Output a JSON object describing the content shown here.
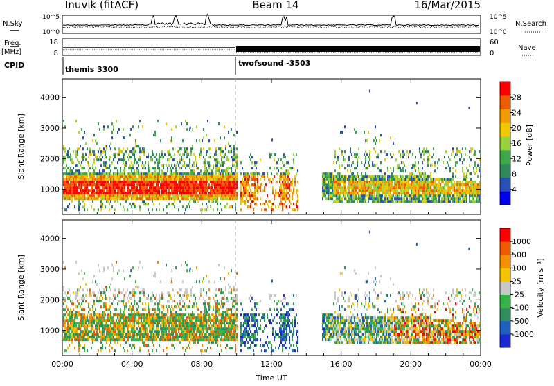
{
  "header": {
    "station": "Inuvik (fitACF)",
    "beam": "Beam 14",
    "date": "16/Mar/2015"
  },
  "strip": {
    "nsky_label": "N.Sky",
    "nsky_ticks": [
      "10^5",
      "10^0"
    ],
    "nsearch_label": "N.Search",
    "nsearch_ticks": [
      "10^5",
      "10^0"
    ],
    "freq_label": "Freq.",
    "freq_unit": "[MHz]",
    "freq_ticks": [
      "18",
      "8"
    ],
    "nave_label": "Nave",
    "nave_ticks": [
      "60",
      "0"
    ],
    "cpid_label": "CPID",
    "cpid_segments": [
      {
        "name": "themis 3300",
        "start_ut": 0
      },
      {
        "name": "twofsound -3503",
        "start_ut": 10
      }
    ]
  },
  "chart_data": [
    {
      "type": "heatmap",
      "panel": "power",
      "xlabel": "",
      "ylabel": "Slant Range [km]",
      "x_range_ut": [
        0,
        24
      ],
      "ylim": [
        180,
        4600
      ],
      "y_ticks": [
        "1000",
        "2000",
        "3000",
        "4000"
      ],
      "colorbar": {
        "label": "Power [dB]",
        "ticks": [
          "4",
          "8",
          "12",
          "16",
          "20",
          "24",
          "28"
        ],
        "colors": [
          "#0000ee",
          "#2a4fb8",
          "#2e8a5a",
          "#3ea84a",
          "#9ad23c",
          "#f0c800",
          "#f39a00",
          "#ee5a00",
          "#ff0000"
        ],
        "range": [
          0,
          32
        ]
      },
      "scatter_gap_ut": [
        15.0,
        15.5
      ],
      "data_gaps_ut": [
        [
          10.0,
          10.2
        ],
        [
          13.5,
          14.8
        ]
      ],
      "bands": [
        {
          "range_km": [
            750,
            1250
          ],
          "level_db": 30,
          "ut": [
            0,
            10
          ]
        },
        {
          "range_km": [
            1300,
            1600
          ],
          "level_db": 14,
          "ut": [
            0,
            10
          ]
        },
        {
          "range_km": [
            700,
            1300
          ],
          "level_db": 18,
          "ut": [
            15.5,
            24
          ]
        }
      ]
    },
    {
      "type": "heatmap",
      "panel": "velocity",
      "xlabel": "Time UT",
      "ylabel": "Slant Range [km]",
      "x_range_ut": [
        0,
        24
      ],
      "x_ticks": [
        "00:00",
        "04:00",
        "08:00",
        "12:00",
        "16:00",
        "20:00",
        "00:00"
      ],
      "ylim": [
        180,
        4600
      ],
      "y_ticks": [
        "1000",
        "2000",
        "3000",
        "4000"
      ],
      "colorbar": {
        "label": "Velocity [m s⁻¹]",
        "ticks": [
          "1000",
          "500",
          "100",
          "25",
          "-25",
          "-100",
          "-500",
          "-1000"
        ],
        "colors": [
          "#1a2ad0",
          "#1f5fc0",
          "#2f8f5a",
          "#36b44a",
          "#c8c8c8",
          "#f5c200",
          "#f59000",
          "#f05a00",
          "#ff0000"
        ]
      }
    }
  ]
}
